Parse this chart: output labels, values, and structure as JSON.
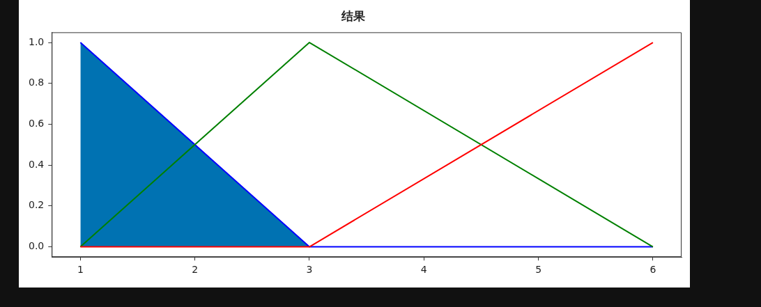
{
  "chart_data": {
    "type": "line",
    "title": "结果",
    "xlim": [
      0.75,
      6.25
    ],
    "xticks": [
      1,
      2,
      3,
      4,
      5,
      6
    ],
    "ylim": [
      -0.05,
      1.05
    ],
    "yticks": [
      {
        "value": 0,
        "label": "0.0"
      },
      {
        "value": 0.2,
        "label": "0.2"
      },
      {
        "value": 0.4,
        "label": "0.4"
      },
      {
        "value": 0.6,
        "label": "0.6"
      },
      {
        "value": 0.8,
        "label": "0.8"
      },
      {
        "value": 1,
        "label": "1.0"
      }
    ],
    "grid": false,
    "legend": false,
    "marker": "none",
    "line_style": "solid",
    "series": [
      {
        "type": "area",
        "color": "#0072b2",
        "x": [
          1,
          3
        ],
        "values": [
          1,
          0
        ]
      },
      {
        "color": "#0000ff",
        "x": [
          1,
          3,
          6
        ],
        "values": [
          1,
          0,
          0
        ]
      },
      {
        "color": "#008000",
        "x": [
          1,
          3,
          6
        ],
        "values": [
          0,
          1,
          0
        ]
      },
      {
        "color": "#ff0000",
        "x": [
          1,
          3,
          6
        ],
        "values": [
          0,
          0,
          1
        ]
      }
    ]
  }
}
